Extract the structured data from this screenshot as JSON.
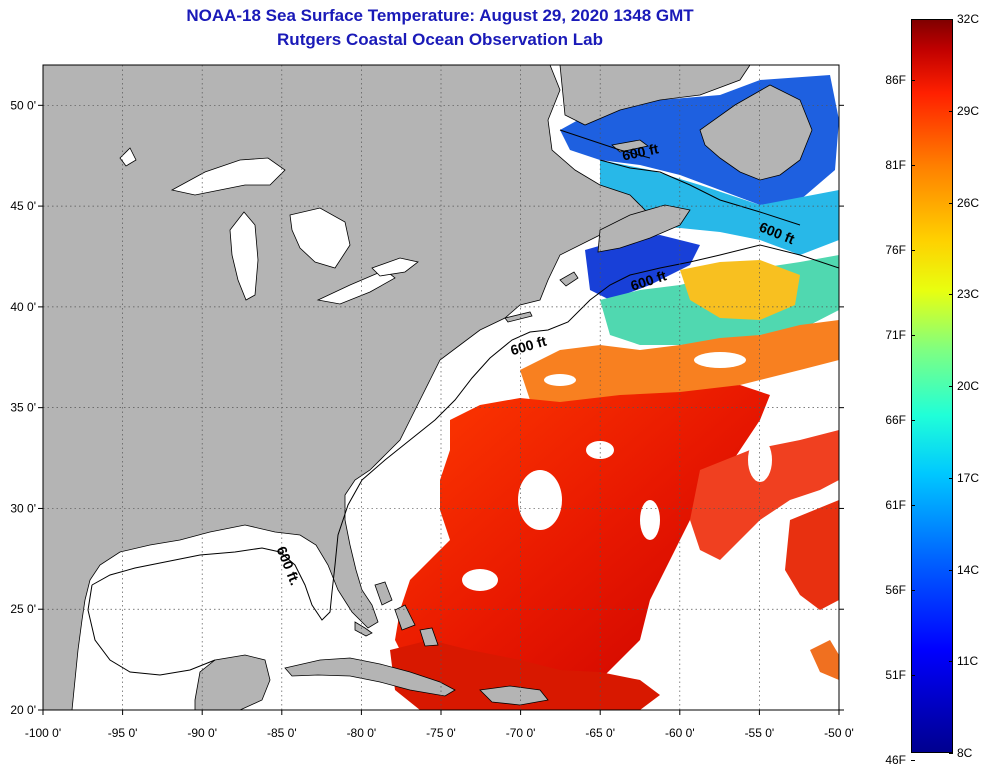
{
  "title": {
    "line1": "NOAA-18 Sea Surface Temperature:  August 29, 2020 1348 GMT",
    "line2": "Rutgers Coastal Ocean Observation Lab"
  },
  "map": {
    "lon_range": [
      -100,
      -50
    ],
    "lat_range": [
      20,
      52
    ],
    "lon_ticks": [
      {
        "value": -100,
        "label": "-100 0'"
      },
      {
        "value": -95,
        "label": "-95 0'"
      },
      {
        "value": -90,
        "label": "-90 0'"
      },
      {
        "value": -85,
        "label": "-85 0'"
      },
      {
        "value": -80,
        "label": "-80 0'"
      },
      {
        "value": -75,
        "label": "-75 0'"
      },
      {
        "value": -70,
        "label": "-70 0'"
      },
      {
        "value": -65,
        "label": "-65 0'"
      },
      {
        "value": -60,
        "label": "-60 0'"
      },
      {
        "value": -55,
        "label": "-55 0'"
      },
      {
        "value": -50,
        "label": "-50 0'"
      }
    ],
    "lat_ticks": [
      {
        "value": 20,
        "label": "20 0'"
      },
      {
        "value": 25,
        "label": "25 0'"
      },
      {
        "value": 30,
        "label": "30 0'"
      },
      {
        "value": 35,
        "label": "35 0'"
      },
      {
        "value": 40,
        "label": "40 0'"
      },
      {
        "value": 45,
        "label": "45 0'"
      },
      {
        "value": 50,
        "label": "50 0'"
      }
    ],
    "isobath_labels": [
      "600 ft",
      "600 ft",
      "600 ft",
      "600 ft",
      "600 ft."
    ],
    "colors": {
      "land": "#b4b4b4",
      "water_no_data": "#ffffff",
      "grid": "#555555"
    }
  },
  "colorbar": {
    "min_c": 8,
    "max_c": 32,
    "celsius_labels": [
      {
        "value": 32,
        "label": "32C"
      },
      {
        "value": 29,
        "label": "29C"
      },
      {
        "value": 26,
        "label": "26C"
      },
      {
        "value": 23,
        "label": "23C"
      },
      {
        "value": 20,
        "label": "20C"
      },
      {
        "value": 17,
        "label": "17C"
      },
      {
        "value": 14,
        "label": "14C"
      },
      {
        "value": 11,
        "label": "11C"
      },
      {
        "value": 8,
        "label": "8C"
      }
    ],
    "fahrenheit_labels": [
      {
        "value": 86,
        "label": "86F"
      },
      {
        "value": 81,
        "label": "81F"
      },
      {
        "value": 76,
        "label": "76F"
      },
      {
        "value": 71,
        "label": "71F"
      },
      {
        "value": 66,
        "label": "66F"
      },
      {
        "value": 61,
        "label": "61F"
      },
      {
        "value": 56,
        "label": "56F"
      },
      {
        "value": 51,
        "label": "51F"
      },
      {
        "value": 46,
        "label": "46F"
      }
    ]
  }
}
